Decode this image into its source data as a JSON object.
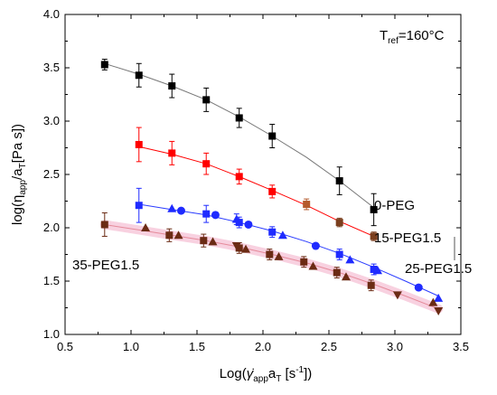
{
  "chart_data": {
    "type": "scatter",
    "xlabel": {
      "main": "Log(",
      "var": "γ̇",
      "sub": "app",
      "main2": "a",
      "sub2": "T",
      "unit": " [s",
      "sup": "-1",
      "end": "])"
    },
    "ylabel": {
      "pre": "log(η",
      "sub": "app",
      "mid": "/a",
      "sub2": "T",
      "post": "[Pa s])"
    },
    "annotation": {
      "pre": "T",
      "sub": "ref",
      "post": "=160°C"
    },
    "xlim": [
      0.5,
      3.5
    ],
    "ylim": [
      1.0,
      4.0
    ],
    "xticks": [
      "0.5",
      "1.0",
      "1.5",
      "2.0",
      "2.5",
      "3.0",
      "3.5"
    ],
    "yticks": [
      "1.0",
      "1.5",
      "2.0",
      "2.5",
      "3.0",
      "3.5",
      "4.0"
    ],
    "grid": false,
    "series": [
      {
        "name": "0-PEG",
        "color": "#000000",
        "fit_color": "#777777",
        "marker": "square",
        "points": [
          {
            "x": 0.8,
            "y": 3.53,
            "err": 0.05
          },
          {
            "x": 1.06,
            "y": 3.43,
            "err": 0.11
          },
          {
            "x": 1.31,
            "y": 3.33,
            "err": 0.11
          },
          {
            "x": 1.57,
            "y": 3.2,
            "err": 0.11
          },
          {
            "x": 1.82,
            "y": 3.03,
            "err": 0.09
          },
          {
            "x": 2.07,
            "y": 2.86,
            "err": 0.11
          },
          {
            "x": 2.58,
            "y": 2.44,
            "err": 0.13
          },
          {
            "x": 2.84,
            "y": 2.17,
            "err": 0.15
          }
        ]
      },
      {
        "name": "15-PEG1.5",
        "color": "#ff0000",
        "fit_color": "#ff0000",
        "marker": "square",
        "points": [
          {
            "x": 1.06,
            "y": 2.78,
            "err": 0.16
          },
          {
            "x": 1.31,
            "y": 2.7,
            "err": 0.11
          },
          {
            "x": 1.57,
            "y": 2.6,
            "err": 0.1
          },
          {
            "x": 1.82,
            "y": 2.48,
            "err": 0.07
          },
          {
            "x": 2.07,
            "y": 2.34,
            "err": 0.06
          },
          {
            "x": 2.33,
            "y": 2.22,
            "err": 0.05,
            "color": "#b55a2c"
          },
          {
            "x": 2.58,
            "y": 2.05,
            "err": 0.04,
            "color": "#7b3f1e"
          },
          {
            "x": 2.84,
            "y": 1.92,
            "err": 0.04,
            "color": "#7b3f1e"
          }
        ]
      },
      {
        "name": "25-PEG1.5",
        "color": "#1f2bff",
        "fit_color": "#2a3cff",
        "marker": "mixed",
        "points": [
          {
            "x": 1.06,
            "y": 2.21,
            "err": 0.16,
            "marker": "square"
          },
          {
            "x": 1.31,
            "y": 2.18,
            "err": 0.0,
            "marker": "triangle"
          },
          {
            "x": 1.38,
            "y": 2.16,
            "err": 0.0,
            "marker": "circle"
          },
          {
            "x": 1.57,
            "y": 2.13,
            "err": 0.08,
            "marker": "square"
          },
          {
            "x": 1.64,
            "y": 2.12,
            "err": 0.0,
            "marker": "circle"
          },
          {
            "x": 1.8,
            "y": 2.08,
            "err": 0.05,
            "marker": "triangle"
          },
          {
            "x": 1.82,
            "y": 2.05,
            "err": 0.05,
            "marker": "square"
          },
          {
            "x": 1.89,
            "y": 2.03,
            "err": 0.0,
            "marker": "circle"
          },
          {
            "x": 2.07,
            "y": 1.96,
            "err": 0.05,
            "marker": "square"
          },
          {
            "x": 2.15,
            "y": 1.93,
            "err": 0.0,
            "marker": "triangle"
          },
          {
            "x": 2.4,
            "y": 1.83,
            "err": 0.0,
            "marker": "circle"
          },
          {
            "x": 2.58,
            "y": 1.75,
            "err": 0.05,
            "marker": "square"
          },
          {
            "x": 2.66,
            "y": 1.7,
            "err": 0.0,
            "marker": "triangle"
          },
          {
            "x": 2.84,
            "y": 1.61,
            "err": 0.05,
            "marker": "square"
          },
          {
            "x": 2.87,
            "y": 1.6,
            "err": 0.0,
            "marker": "triangle"
          },
          {
            "x": 3.18,
            "y": 1.44,
            "err": 0.0,
            "marker": "circle"
          },
          {
            "x": 3.33,
            "y": 1.34,
            "err": 0.0,
            "marker": "triangle"
          }
        ]
      },
      {
        "name": "35-PEG1.5",
        "color": "#6b2b14",
        "fit_color": "#e58a9a",
        "marker": "mixed",
        "points": [
          {
            "x": 0.8,
            "y": 2.03,
            "err": 0.11,
            "marker": "square"
          },
          {
            "x": 1.11,
            "y": 2.0,
            "err": 0.0,
            "marker": "triangle"
          },
          {
            "x": 1.29,
            "y": 1.93,
            "err": 0.06,
            "marker": "square"
          },
          {
            "x": 1.36,
            "y": 1.93,
            "err": 0.0,
            "marker": "triangle"
          },
          {
            "x": 1.55,
            "y": 1.88,
            "err": 0.06,
            "marker": "square"
          },
          {
            "x": 1.62,
            "y": 1.87,
            "err": 0.0,
            "marker": "triangle"
          },
          {
            "x": 1.8,
            "y": 1.83,
            "err": 0.0,
            "marker": "triangle-down"
          },
          {
            "x": 1.82,
            "y": 1.81,
            "err": 0.05,
            "marker": "square"
          },
          {
            "x": 1.87,
            "y": 1.8,
            "err": 0.0,
            "marker": "triangle"
          },
          {
            "x": 2.05,
            "y": 1.75,
            "err": 0.05,
            "marker": "square"
          },
          {
            "x": 2.12,
            "y": 1.73,
            "err": 0.0,
            "marker": "triangle"
          },
          {
            "x": 2.31,
            "y": 1.68,
            "err": 0.05,
            "marker": "square"
          },
          {
            "x": 2.38,
            "y": 1.64,
            "err": 0.0,
            "marker": "triangle"
          },
          {
            "x": 2.56,
            "y": 1.58,
            "err": 0.05,
            "marker": "square"
          },
          {
            "x": 2.63,
            "y": 1.54,
            "err": 0.0,
            "marker": "triangle"
          },
          {
            "x": 2.82,
            "y": 1.46,
            "err": 0.05,
            "marker": "square"
          },
          {
            "x": 3.02,
            "y": 1.37,
            "err": 0.0,
            "marker": "triangle-down"
          },
          {
            "x": 3.29,
            "y": 1.3,
            "err": 0.0,
            "marker": "triangle"
          },
          {
            "x": 3.33,
            "y": 1.22,
            "err": 0.0,
            "marker": "triangle-down"
          }
        ]
      }
    ],
    "fits": [
      {
        "name": "0-PEG",
        "x": [
          0.8,
          1.06,
          1.31,
          1.57,
          1.82,
          2.07,
          2.33,
          2.58,
          2.84
        ],
        "y": [
          3.54,
          3.44,
          3.33,
          3.2,
          3.04,
          2.86,
          2.66,
          2.44,
          2.19
        ]
      },
      {
        "name": "15-PEG1.5",
        "x": [
          1.06,
          1.31,
          1.57,
          1.82,
          2.07,
          2.33,
          2.58,
          2.84
        ],
        "y": [
          2.76,
          2.69,
          2.6,
          2.48,
          2.35,
          2.21,
          2.06,
          1.92
        ]
      },
      {
        "name": "25-PEG1.5",
        "x": [
          1.06,
          1.31,
          1.57,
          1.82,
          2.07,
          2.33,
          2.58,
          2.84,
          3.08,
          3.33
        ],
        "y": [
          2.22,
          2.17,
          2.12,
          2.05,
          1.97,
          1.87,
          1.76,
          1.63,
          1.5,
          1.36
        ]
      },
      {
        "name": "35-PEG1.5",
        "x": [
          0.8,
          1.06,
          1.31,
          1.57,
          1.82,
          2.07,
          2.33,
          2.58,
          2.84,
          3.08,
          3.33
        ],
        "y": [
          2.03,
          1.98,
          1.93,
          1.88,
          1.82,
          1.75,
          1.67,
          1.58,
          1.47,
          1.36,
          1.24
        ]
      }
    ],
    "labels": [
      {
        "text": "0-PEG"
      },
      {
        "text": "15-PEG1.5"
      },
      {
        "text": "25-PEG1.5"
      },
      {
        "text": "35-PEG1.5"
      }
    ]
  }
}
